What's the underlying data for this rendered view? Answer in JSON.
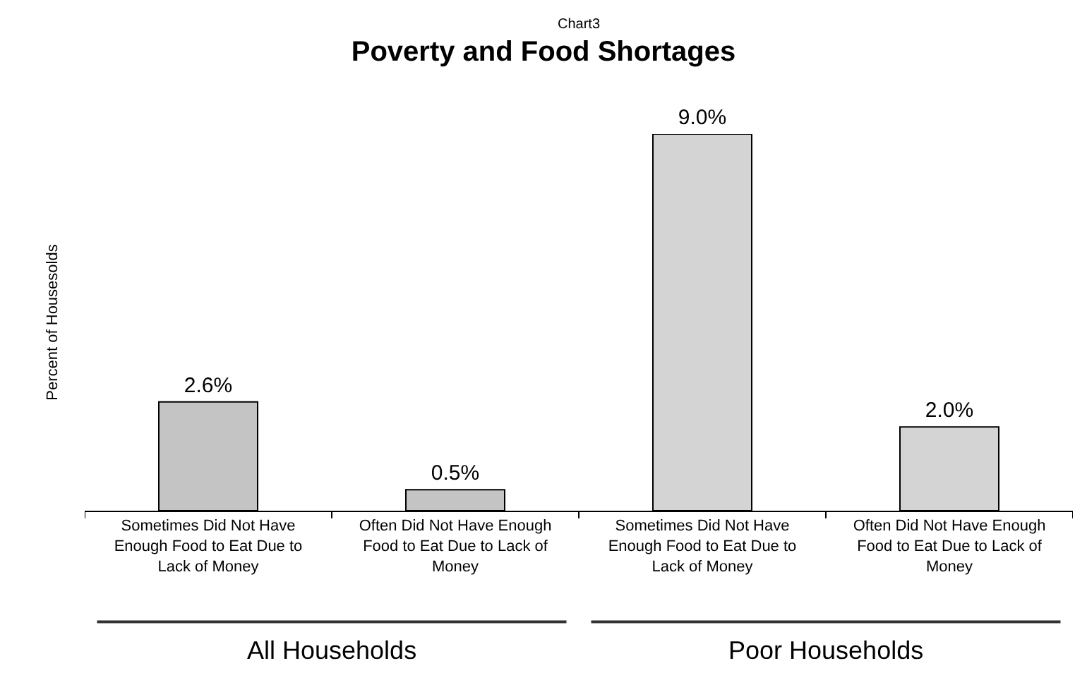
{
  "chart_data": {
    "type": "bar",
    "title": "Poverty and Food Shortages",
    "ylabel": "Percent of Housesolds",
    "categories": [
      "Sometimes Did Not Have Enough Food to Eat Due to Lack of Money",
      "Often Did Not Have Enough Food to Eat Due to Lack of Money",
      "Sometimes Did Not Have Enough Food to Eat Due to Lack of Money",
      "Often Did Not Have Enough Food to Eat Due to Lack of Money"
    ],
    "values": [
      2.6,
      0.5,
      9.0,
      2.0
    ],
    "value_labels": [
      "2.6%",
      "0.5%",
      "9.0%",
      "2.0%"
    ],
    "colors": [
      "#c4c4c4",
      "#c4c4c4",
      "#d4d4d4",
      "#d4d4d4"
    ],
    "tick_labels": "x",
    "legend": false,
    "annotations": [
      "Chart3",
      "All Households",
      "Poor Households"
    ]
  }
}
